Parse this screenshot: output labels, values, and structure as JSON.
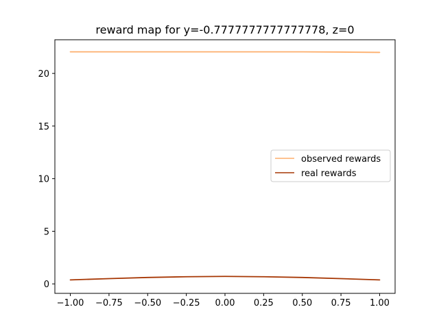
{
  "chart_data": {
    "type": "line",
    "title": "reward map for y=-0.7777777777777778, z=0",
    "xlabel": "",
    "ylabel": "",
    "xlim": [
      -1.1,
      1.1
    ],
    "ylim": [
      -0.9,
      23.2
    ],
    "x_ticks": [
      -1.0,
      -0.75,
      -0.5,
      -0.25,
      0.0,
      0.25,
      0.5,
      0.75,
      1.0
    ],
    "x_tick_labels": [
      "−1.00",
      "−0.75",
      "−0.50",
      "−0.25",
      "0.00",
      "0.25",
      "0.50",
      "0.75",
      "1.00"
    ],
    "y_ticks": [
      0,
      5,
      10,
      15,
      20
    ],
    "y_tick_labels": [
      "0",
      "5",
      "10",
      "15",
      "20"
    ],
    "grid": false,
    "legend_position": "center-right",
    "series": [
      {
        "name": "observed rewards",
        "color": "#fdae6b",
        "x": [
          -1.0,
          -0.75,
          -0.5,
          -0.25,
          0.0,
          0.25,
          0.5,
          0.75,
          1.0
        ],
        "values": [
          22.05,
          22.05,
          22.05,
          22.05,
          22.05,
          22.05,
          22.05,
          22.03,
          22.0
        ]
      },
      {
        "name": "real rewards",
        "color": "#a63603",
        "x": [
          -1.0,
          -0.75,
          -0.5,
          -0.25,
          0.0,
          0.25,
          0.5,
          0.75,
          1.0
        ],
        "values": [
          0.38,
          0.5,
          0.61,
          0.68,
          0.71,
          0.68,
          0.61,
          0.5,
          0.38
        ]
      }
    ]
  }
}
